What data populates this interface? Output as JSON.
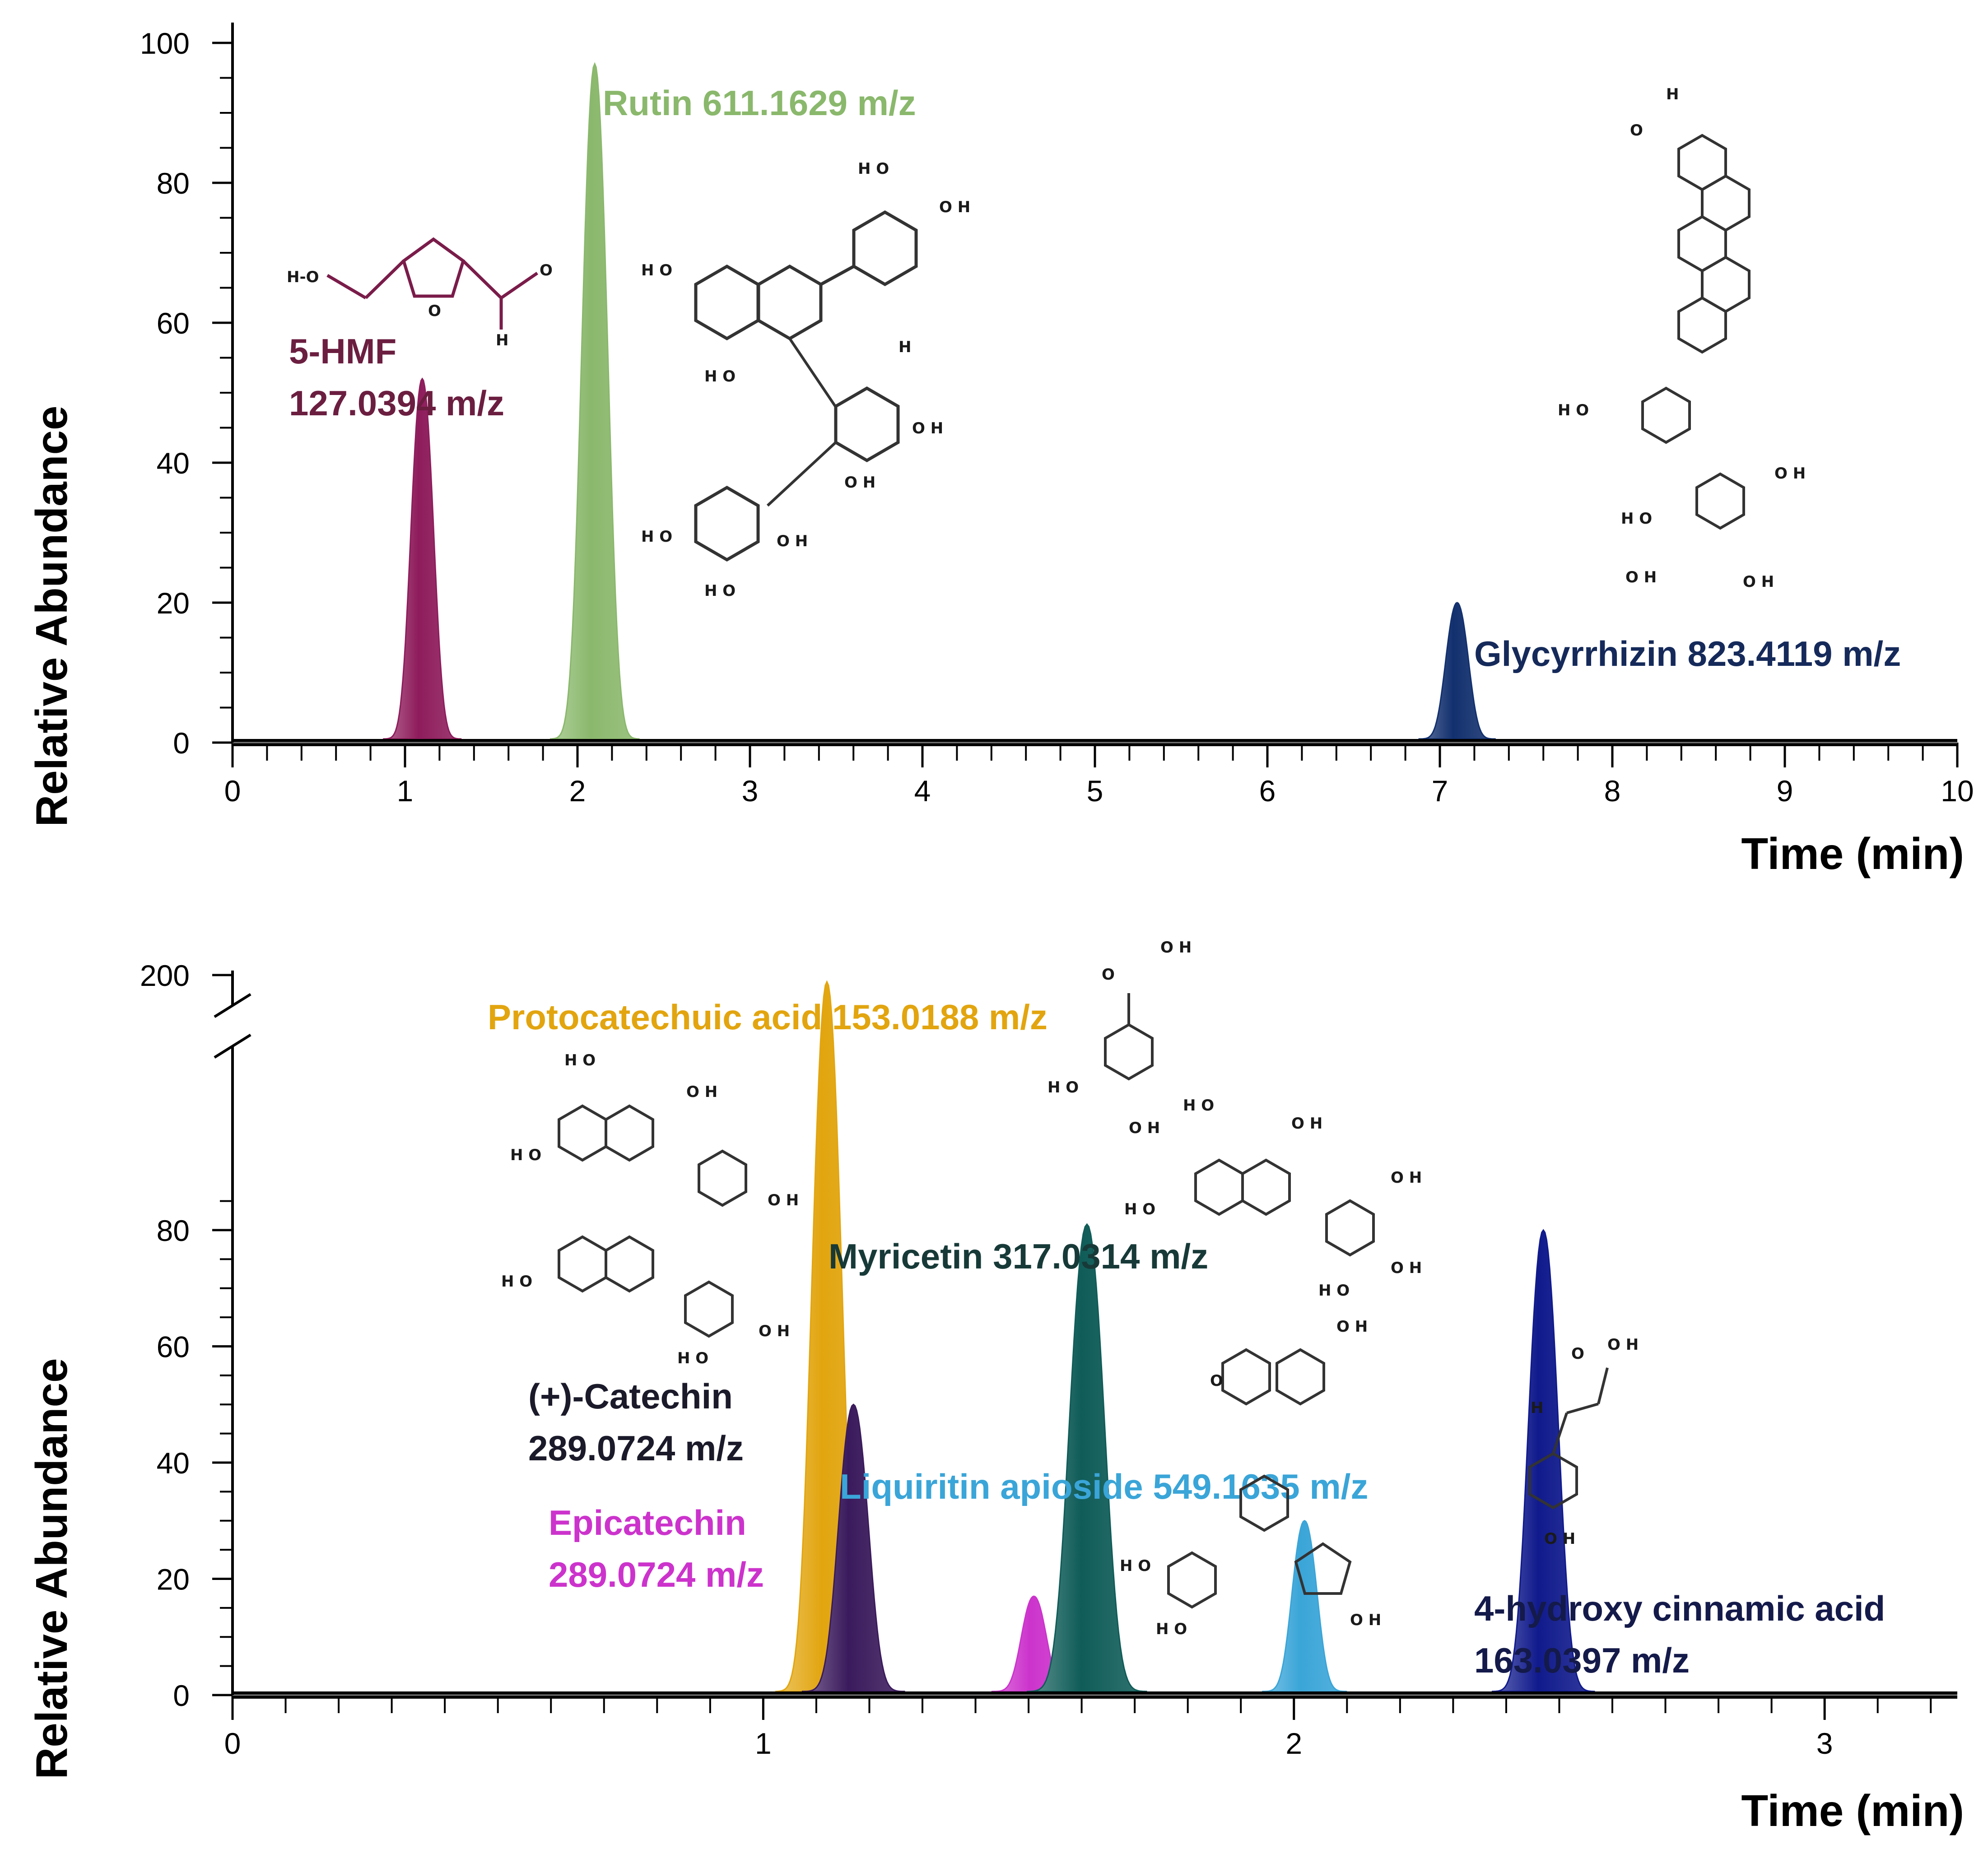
{
  "chart_data": [
    {
      "type": "area",
      "title": "",
      "xlabel": "Time (min)",
      "ylabel": "Relative Abundance",
      "xlim": [
        0,
        10
      ],
      "ylim": [
        0,
        100
      ],
      "x_ticks": [
        0,
        1,
        2,
        3,
        4,
        5,
        6,
        7,
        8,
        9,
        10
      ],
      "y_ticks": [
        0,
        20,
        40,
        60,
        80,
        100
      ],
      "series": [
        {
          "name": "5-HMF 127.0394 m/z",
          "label_lines": [
            "5-HMF",
            "127.0394 m/z"
          ],
          "rt": 1.1,
          "peak": 52,
          "width": 0.07,
          "color": "#8e1c5c"
        },
        {
          "name": "Rutin 611.1629 m/z",
          "label_lines": [
            "Rutin 611.1629 m/z"
          ],
          "rt": 2.1,
          "peak": 97,
          "width": 0.08,
          "color": "#8ab86c"
        },
        {
          "name": "Glycyrrhizin 823.4119 m/z",
          "label_lines": [
            "Glycyrrhizin 823.4119 m/z"
          ],
          "rt": 7.1,
          "peak": 20,
          "width": 0.07,
          "color": "#12306e"
        }
      ]
    },
    {
      "type": "area",
      "title": "",
      "xlabel": "Time (min)",
      "ylabel": "Relative Abundance",
      "xlim": [
        0,
        3.25
      ],
      "ylim": [
        0,
        200
      ],
      "axis_break": [
        100,
        190
      ],
      "x_ticks": [
        0,
        1,
        2,
        3
      ],
      "y_ticks": [
        0,
        20,
        40,
        60,
        80,
        200
      ],
      "series": [
        {
          "name": "Protocatechuic acid 153.0188 m/z",
          "label_lines": [
            "Protocatechuic acid 153.0188 m/z"
          ],
          "rt": 1.12,
          "peak": 195,
          "width": 0.03,
          "color": "#e2a50f"
        },
        {
          "name": "(+)-Catechin 289.0724 m/z",
          "label_lines": [
            "(+)-Catechin",
            "289.0724 m/z"
          ],
          "rt": 1.17,
          "peak": 50,
          "width": 0.03,
          "color": "#3a1a5c"
        },
        {
          "name": "Epicatechin 289.0724 m/z",
          "label_lines": [
            "Epicatechin",
            "289.0724 m/z"
          ],
          "rt": 1.51,
          "peak": 17,
          "width": 0.025,
          "color": "#cc33cc"
        },
        {
          "name": "Myricetin 317.0314 m/z",
          "label_lines": [
            "Myricetin 317.0314 m/z"
          ],
          "rt": 1.61,
          "peak": 81,
          "width": 0.035,
          "color": "#0f5c58"
        },
        {
          "name": "Liquiritin apioside 549.1635 m/z",
          "label_lines": [
            "Liquiritin apioside 549.1635 m/z"
          ],
          "rt": 2.02,
          "peak": 30,
          "width": 0.025,
          "color": "#3aa5d8"
        },
        {
          "name": "4-hydroxy cinnamic acid 163.0397 m/z",
          "label_lines": [
            "4-hydroxy cinnamic acid",
            "163.0397 m/z"
          ],
          "rt": 2.47,
          "peak": 80,
          "width": 0.03,
          "color": "#101a8c"
        }
      ]
    }
  ]
}
